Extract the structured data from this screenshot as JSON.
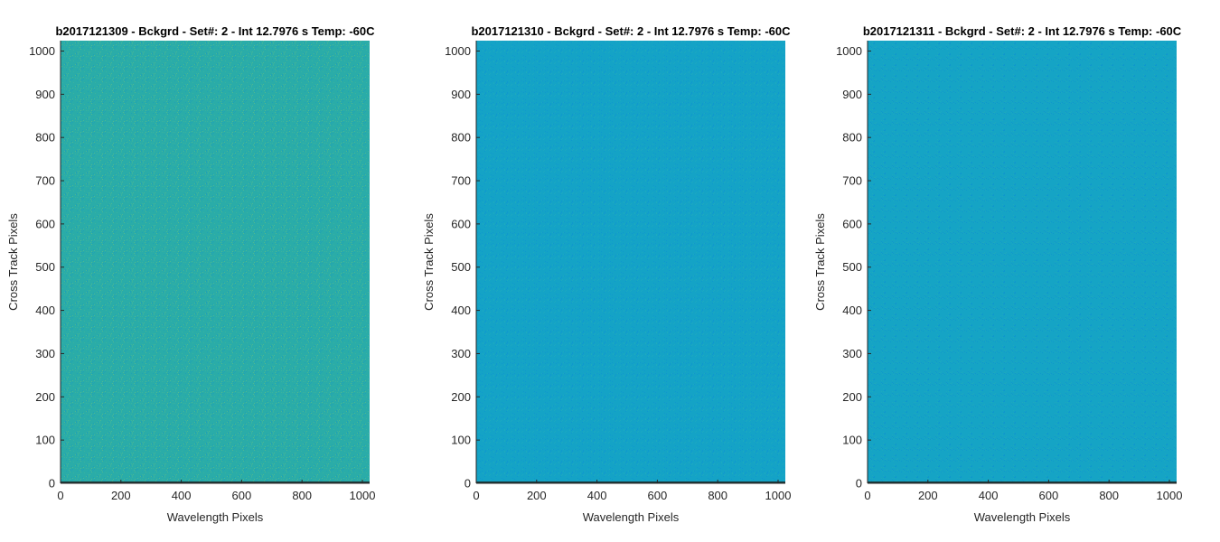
{
  "chart_data": [
    {
      "type": "heatmap",
      "title": "b2017121309 - Bckgrd - Set#: 2 - Int 12.7976 s Temp: -60C",
      "xlabel": "Wavelength Pixels",
      "ylabel": "Cross Track Pixels",
      "xlim": [
        0,
        1024
      ],
      "ylim": [
        0,
        1024
      ],
      "xticks": [
        0,
        200,
        400,
        600,
        800,
        1000
      ],
      "yticks": [
        0,
        100,
        200,
        300,
        400,
        500,
        600,
        700,
        800,
        900,
        1000
      ],
      "base_color": "#2aaca8",
      "noise_colors": [
        "#1ea0b8",
        "#3db39c",
        "#52b98e"
      ],
      "bottom_row_color": "#1f3a3a",
      "grid": false
    },
    {
      "type": "heatmap",
      "title": "b2017121310 - Bckgrd - Set#: 2 - Int 12.7976 s Temp: -60C",
      "xlabel": "Wavelength Pixels",
      "ylabel": "Cross Track Pixels",
      "xlim": [
        0,
        1024
      ],
      "ylim": [
        0,
        1024
      ],
      "xticks": [
        0,
        200,
        400,
        600,
        800,
        1000
      ],
      "yticks": [
        0,
        100,
        200,
        300,
        400,
        500,
        600,
        700,
        800,
        900,
        1000
      ],
      "base_color": "#14a3c6",
      "noise_colors": [
        "#0f96cf",
        "#1ea9be",
        "#17a0c8"
      ],
      "bottom_row_color": "#1a3b3d",
      "grid": false
    },
    {
      "type": "heatmap",
      "title": "b2017121311 - Bckgrd - Set#: 2 - Int 12.7976 s Temp: -60C",
      "xlabel": "Wavelength Pixels",
      "ylabel": "Cross Track Pixels",
      "xlim": [
        0,
        1024
      ],
      "ylim": [
        0,
        1024
      ],
      "xticks": [
        0,
        200,
        400,
        600,
        800,
        1000
      ],
      "yticks": [
        0,
        100,
        200,
        300,
        400,
        500,
        600,
        700,
        800,
        900,
        1000
      ],
      "base_color": "#15a4c5",
      "noise_colors": [
        "#0f97ce",
        "#1fa9bd",
        "#17a1c7"
      ],
      "bottom_row_color": "#1a3b3d",
      "grid": false
    }
  ]
}
